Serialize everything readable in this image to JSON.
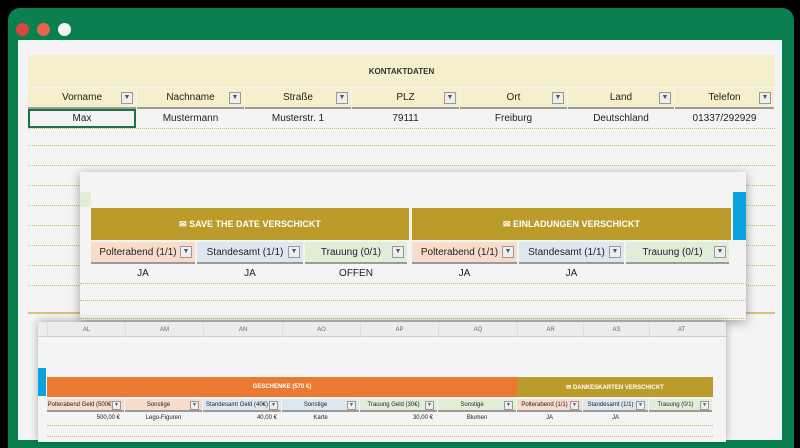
{
  "window": {
    "controls": [
      "close",
      "minimize",
      "maximize"
    ],
    "frame_color": "#0a8050"
  },
  "sheet1": {
    "title": "KONTAKTDATEN",
    "columns": [
      "Vorname",
      "Nachname",
      "Straße",
      "PLZ",
      "Ort",
      "Land",
      "Telefon"
    ],
    "rows": [
      [
        "Max",
        "Mustermann",
        "Musterstr. 1",
        "79111",
        "Freiburg",
        "Deutschland",
        "01337/292929"
      ]
    ],
    "header_color": "#f5efcc"
  },
  "sheet2": {
    "groups": [
      {
        "label": "✉ SAVE THE DATE VERSCHICKT",
        "columns": [
          "Polterabend (1/1)",
          "Standesamt (1/1)",
          "Trauung (0/1)"
        ],
        "values": [
          "JA",
          "JA",
          "OFFEN"
        ]
      },
      {
        "label": "✉ EINLADUNGEN VERSCHICKT",
        "columns": [
          "Polterabend (1/1)",
          "Standesamt (1/1)",
          "Trauung (0/1)"
        ],
        "values": [
          "JA",
          "JA",
          ""
        ]
      }
    ],
    "group_color": "#bb9c2a"
  },
  "sheet3": {
    "column_letters": [
      "AL",
      "AM",
      "AN",
      "AO",
      "AP",
      "AQ",
      "AR",
      "AS",
      "AT"
    ],
    "groups": [
      {
        "label": "GESCHENKE (570 €)",
        "color": "#ea7a32"
      },
      {
        "label": "✉ DANKESKARTEN VERSCHICKT",
        "color": "#bb9c2a"
      }
    ],
    "columns": [
      "Polterabend Geld (500€)",
      "Sonstige",
      "Standesamt Geld (40€)",
      "Sonstige",
      "Trauung Geld (30€)",
      "Sonstige",
      "Polterabend (1/1)",
      "Standesamt (1/1)",
      "Trauung (0/1)"
    ],
    "values": [
      "500,00 €",
      "Lego-Figuren",
      "40,00 €",
      "Karte",
      "30,00 €",
      "Blumen",
      "JA",
      "JA",
      ""
    ]
  }
}
